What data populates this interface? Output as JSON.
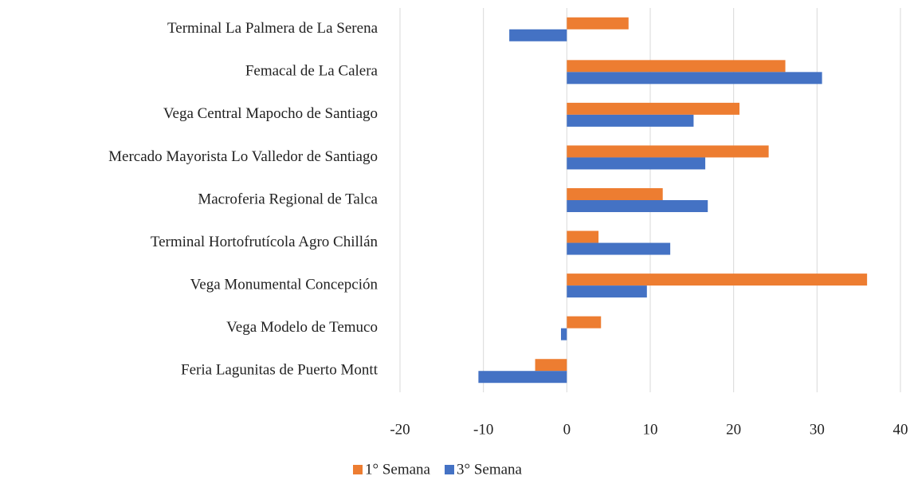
{
  "chart_data": {
    "type": "hbar",
    "categories": [
      "Terminal La Palmera de La Serena",
      "Femacal de La Calera",
      "Vega Central Mapocho de Santiago",
      "Mercado Mayorista Lo Valledor de Santiago",
      "Macroferia Regional de Talca",
      "Terminal Hortofrutícola Agro Chillán",
      "Vega Monumental Concepción",
      "Vega Modelo de Temuco",
      "Feria Lagunitas de Puerto Montt"
    ],
    "series": [
      {
        "name": "1° Semana",
        "color": "#ed7d31",
        "values": [
          7.4,
          26.2,
          20.7,
          24.2,
          11.5,
          3.8,
          36.0,
          4.1,
          -3.8
        ]
      },
      {
        "name": "3° Semana",
        "color": "#4472c4",
        "values": [
          -6.9,
          30.6,
          15.2,
          16.6,
          16.9,
          12.4,
          9.6,
          -0.7,
          -10.6
        ]
      }
    ],
    "xlim": [
      -20,
      40
    ],
    "xticks": [
      -20,
      -10,
      0,
      10,
      20,
      30,
      40
    ],
    "grid": true,
    "legend": "bottom"
  }
}
